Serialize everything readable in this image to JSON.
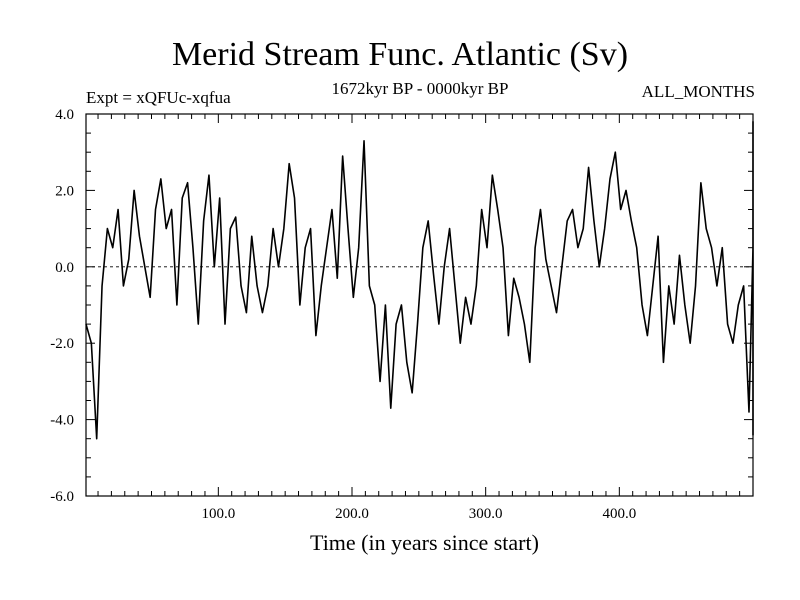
{
  "chart_data": {
    "type": "line",
    "title": "Merid Stream Func. Atlantic (Sv)",
    "experiment_label": "Expt = xQFUc-xqfua",
    "period_label": "1672kyr BP - 0000kyr BP",
    "months_label": "ALL_MONTHS",
    "xlabel": "Time (in years since start)",
    "ylabel": "",
    "xlim": [
      1,
      500
    ],
    "ylim": [
      -6.0,
      4.0
    ],
    "x_ticks": [
      100,
      200,
      300,
      400
    ],
    "x_tick_labels": [
      "100.0",
      "200.0",
      "300.0",
      "400.0"
    ],
    "y_ticks": [
      4.0,
      2.0,
      0.0,
      -2.0,
      -4.0,
      -6.0
    ],
    "y_tick_labels": [
      "4.0",
      "2.0",
      "0.0",
      "-2.0",
      "-4.0",
      "-6.0"
    ],
    "zero_line": 0.0,
    "series": [
      {
        "name": "Merid Stream Func. Atlantic",
        "x_start": 1,
        "x_step": 4,
        "values": [
          -1.5,
          -2.0,
          -4.5,
          -0.5,
          1.0,
          0.5,
          1.5,
          -0.5,
          0.2,
          2.0,
          0.8,
          0.0,
          -0.8,
          1.5,
          2.3,
          1.0,
          1.5,
          -1.0,
          1.8,
          2.2,
          0.5,
          -1.5,
          1.2,
          2.4,
          0.0,
          1.8,
          -1.5,
          1.0,
          1.3,
          -0.5,
          -1.2,
          0.8,
          -0.5,
          -1.2,
          -0.5,
          1.0,
          0.0,
          1.0,
          2.7,
          1.8,
          -1.0,
          0.5,
          1.0,
          -1.8,
          -0.5,
          0.5,
          1.5,
          -0.3,
          2.9,
          1.0,
          -0.8,
          0.5,
          3.3,
          -0.5,
          -1.0,
          -3.0,
          -1.0,
          -3.7,
          -1.5,
          -1.0,
          -2.5,
          -3.3,
          -1.5,
          0.5,
          1.2,
          -0.2,
          -1.5,
          0.0,
          1.0,
          -0.5,
          -2.0,
          -0.8,
          -1.5,
          -0.5,
          1.5,
          0.5,
          2.4,
          1.5,
          0.5,
          -1.8,
          -0.3,
          -0.8,
          -1.5,
          -2.5,
          0.5,
          1.5,
          0.2,
          -0.5,
          -1.2,
          0.0,
          1.2,
          1.5,
          0.5,
          1.0,
          2.6,
          1.2,
          0.0,
          1.0,
          2.3,
          3.0,
          1.5,
          2.0,
          1.2,
          0.5,
          -1.0,
          -1.8,
          -0.5,
          0.8,
          -2.5,
          -0.5,
          -1.5,
          0.3,
          -1.0,
          -2.0,
          -0.5,
          2.2,
          1.0,
          0.5,
          -0.5,
          0.5,
          -1.5,
          -2.0,
          -1.0,
          -0.5,
          -3.8,
          0.5,
          1.5,
          -1.5,
          1.0,
          2.5,
          -0.5,
          0.5,
          -1.2,
          0.8,
          -0.5,
          -2.0,
          -1.0,
          -0.5,
          1.5,
          0.5,
          -1.5,
          0.8,
          2.3,
          -1.0,
          -1.5,
          -4.4,
          -0.5,
          1.8,
          0.5,
          -0.5,
          2.8,
          1.0,
          1.5,
          -1.5,
          -0.2,
          0.5,
          2.0,
          0.5,
          1.8,
          -0.8,
          -0.5,
          -1.0,
          -4.2,
          0.5,
          2.2,
          0.5,
          -0.5,
          1.8,
          0.8,
          1.5,
          2.5,
          -0.5,
          -0.8,
          0.5,
          2.3,
          1.0,
          -0.3,
          -0.5,
          -2.0,
          -0.5,
          -0.8,
          -1.0,
          -2.0,
          -0.5,
          -2.8,
          -0.8,
          0.5,
          -0.5,
          0.5,
          3.6,
          -1.0,
          -1.5,
          -3.6,
          -1.0,
          2.5,
          -0.8,
          -1.5,
          0.5,
          2.8,
          1.0,
          -0.5,
          -1.5,
          -0.5,
          -2.0,
          -1.0,
          -2.0,
          -2.8,
          -0.5,
          -1.0,
          1.0,
          0.5,
          2.5,
          0.5,
          -0.8,
          0.5,
          1.0,
          -1.5,
          0.0,
          1.5,
          0.5,
          -1.0,
          1.5,
          0.8,
          -0.5,
          1.0,
          2.5,
          3.8,
          3.0,
          3.2,
          1.0,
          0.0,
          -1.0,
          0.5,
          1.8,
          0.5,
          1.2,
          0.0,
          0.8,
          1.5,
          0.5,
          1.0,
          -0.5,
          1.5,
          -1.0,
          0.5,
          1.8,
          -0.5,
          -1.0,
          0.5,
          -0.5,
          -2.2,
          -1.0,
          -1.8,
          0.0
        ]
      }
    ]
  }
}
